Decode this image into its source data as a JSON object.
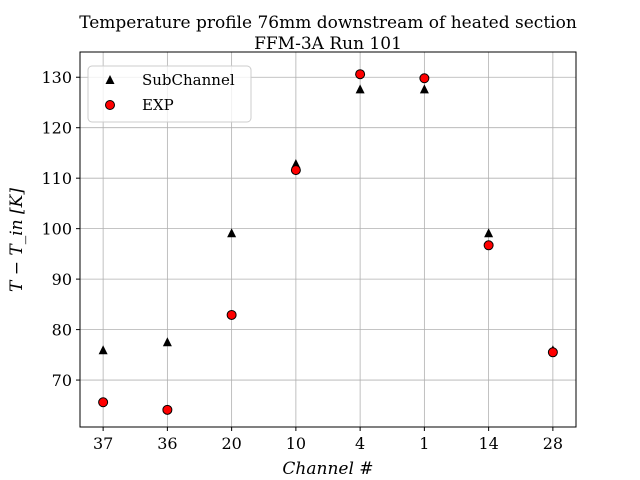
{
  "chart_data": {
    "type": "scatter",
    "title": "Temperature profile 76mm downstream of heated section",
    "subtitle": "FFM-3A Run 101",
    "xlabel": "Channel #",
    "ylabel": "T − T_in [K]",
    "categories": [
      "37",
      "36",
      "20",
      "10",
      "4",
      "1",
      "14",
      "28"
    ],
    "ylim": [
      60.7,
      135
    ],
    "yticks": [
      70,
      80,
      90,
      100,
      110,
      120,
      130
    ],
    "grid": true,
    "legend_position": "top-left",
    "series": [
      {
        "name": "SubChannel",
        "marker": "triangle",
        "color": "#000000",
        "values": [
          75.9,
          77.5,
          99.1,
          112.8,
          127.6,
          127.6,
          99.1,
          75.9
        ]
      },
      {
        "name": "EXP",
        "marker": "circle",
        "color": "#ff0000",
        "edge": "#000000",
        "values": [
          65.6,
          64.1,
          82.9,
          111.6,
          130.6,
          129.8,
          96.7,
          75.5
        ]
      }
    ]
  }
}
